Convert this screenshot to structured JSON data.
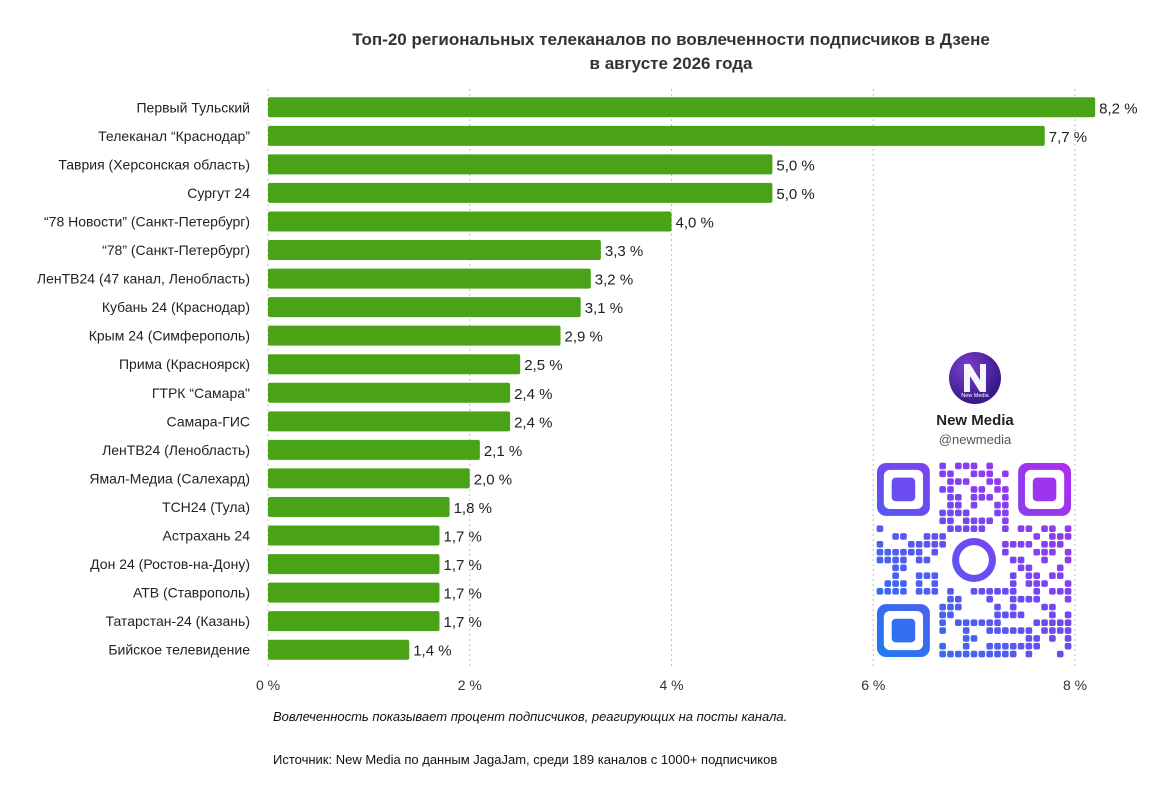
{
  "chart_data": {
    "type": "bar",
    "orientation": "horizontal",
    "title": [
      "Топ-20 региональных телеканалов по вовлеченности подписчиков в Дзене",
      "в августе 2026 года"
    ],
    "categories": [
      "Первый Тульский",
      "Телеканал “Краснодар”",
      "Таврия (Херсонская область)",
      "Сургут 24",
      "“78 Новости” (Санкт-Петербург)",
      "“78” (Санкт-Петербург)",
      "ЛенТВ24 (47 канал, Ленобласть)",
      "Кубань 24 (Краснодар)",
      "Крым 24 (Симферополь)",
      "Прима (Красноярск)",
      "ГТРК “Самара\"",
      "Самара-ГИС",
      "ЛенТВ24 (Ленобласть)",
      "Ямал-Медиа (Салехард)",
      "ТСН24 (Тула)",
      "Астрахань 24",
      "Дон 24 (Ростов-на-Дону)",
      "АТВ (Ставрополь)",
      "Татарстан-24 (Казань)",
      "Бийское телевидение"
    ],
    "values": [
      8.2,
      7.7,
      5.0,
      5.0,
      4.0,
      3.3,
      3.2,
      3.1,
      2.9,
      2.5,
      2.4,
      2.4,
      2.1,
      2.0,
      1.8,
      1.7,
      1.7,
      1.7,
      1.7,
      1.4
    ],
    "value_labels": [
      "8,2 %",
      "7,7 %",
      "5,0 %",
      "5,0 %",
      "4,0 %",
      "3,3 %",
      "3,2 %",
      "3,1 %",
      "2,9 %",
      "2,5 %",
      "2,4 %",
      "2,4 %",
      "2,1 %",
      "2,0 %",
      "1,8 %",
      "1,7 %",
      "1,7 %",
      "1,7 %",
      "1,7 %",
      "1,4 %"
    ],
    "xlim": [
      0,
      8
    ],
    "x_ticks": [
      0,
      2,
      4,
      6,
      8
    ],
    "x_tick_labels": [
      "0 %",
      "2 %",
      "4 %",
      "6 %",
      "8 %"
    ],
    "grid": "vertical dotted",
    "bar_color": "#4aa316"
  },
  "brand": {
    "name": "New Media",
    "handle": "@newmedia",
    "logo_text": "New Media"
  },
  "note": "Вовлеченность показывает процент подписчиков, реагирующих на посты канала.",
  "source": "Источник: New Media по данным JagaJam, среди 189 каналов с 1000+ подписчиков"
}
